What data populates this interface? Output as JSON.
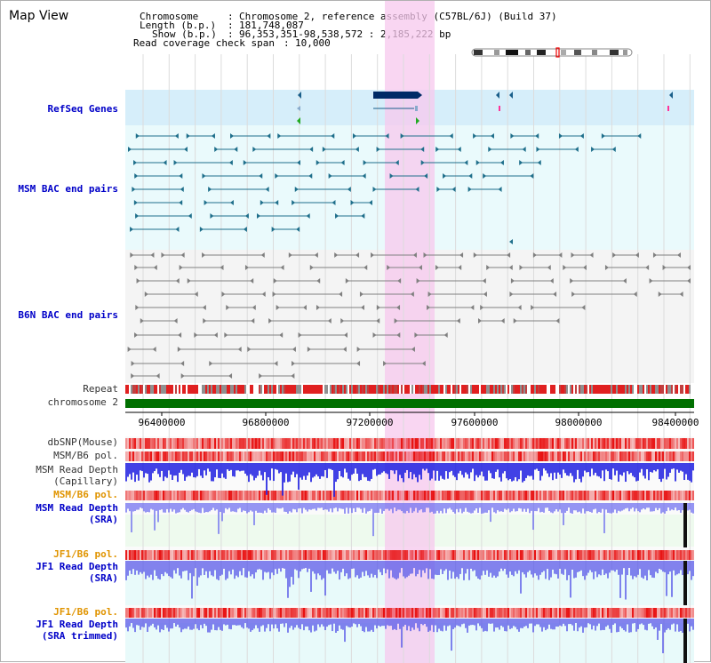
{
  "title": "Map View",
  "header": {
    "chromosome_key": "Chromosome",
    "chromosome_val": "Chromosome 2, reference assembly (C57BL/6J) (Build 37)",
    "length_key": "Length (b.p.)",
    "length_val": "181,748,087",
    "show_key": "Show (b.p.)",
    "show_val": "96,353,351-98,538,572 : 2,185,222 bp",
    "coverage_key": "Read coverage check span",
    "coverage_val": "10,000"
  },
  "tracks": {
    "refseq": "RefSeq Genes",
    "msm_bac": "MSM BAC end pairs",
    "b6n_bac": "B6N BAC end pairs",
    "repeat": "Repeat",
    "chromosome": "chromosome 2",
    "dbsnp": "dbSNP(Mouse)",
    "msm_b6_pol_1": "MSM/B6 pol.",
    "msm_depth_cap_1": "MSM Read Depth",
    "msm_depth_cap_2": "(Capillary)",
    "msm_b6_pol_2": "MSM/B6 pol.",
    "msm_depth_sra_1": "MSM Read Depth",
    "msm_depth_sra_2": "(SRA)",
    "jf1_b6_pol_1": "JF1/B6 pol.",
    "jf1_depth_sra_1": "JF1 Read Depth",
    "jf1_depth_sra_2": "(SRA)",
    "jf1_b6_pol_2": "JF1/B6 pol.",
    "jf1_depth_trim_1": "JF1 Read Depth",
    "jf1_depth_trim_2": "(SRA trimmed)"
  },
  "axis_ticks": [
    "96400000",
    "96800000",
    "97200000",
    "97600000",
    "98000000",
    "98400000"
  ],
  "colors": {
    "highlight": "#f7c8ee",
    "refseq_bg": "#d6eefa",
    "bac_bg": "#eafafc",
    "chromosome_bar": "#007000",
    "msm_feature": "#1f6f8b",
    "b6n_feature": "#808080",
    "snp_red": "#e81010",
    "depth_blue": "#3a3adc"
  }
}
